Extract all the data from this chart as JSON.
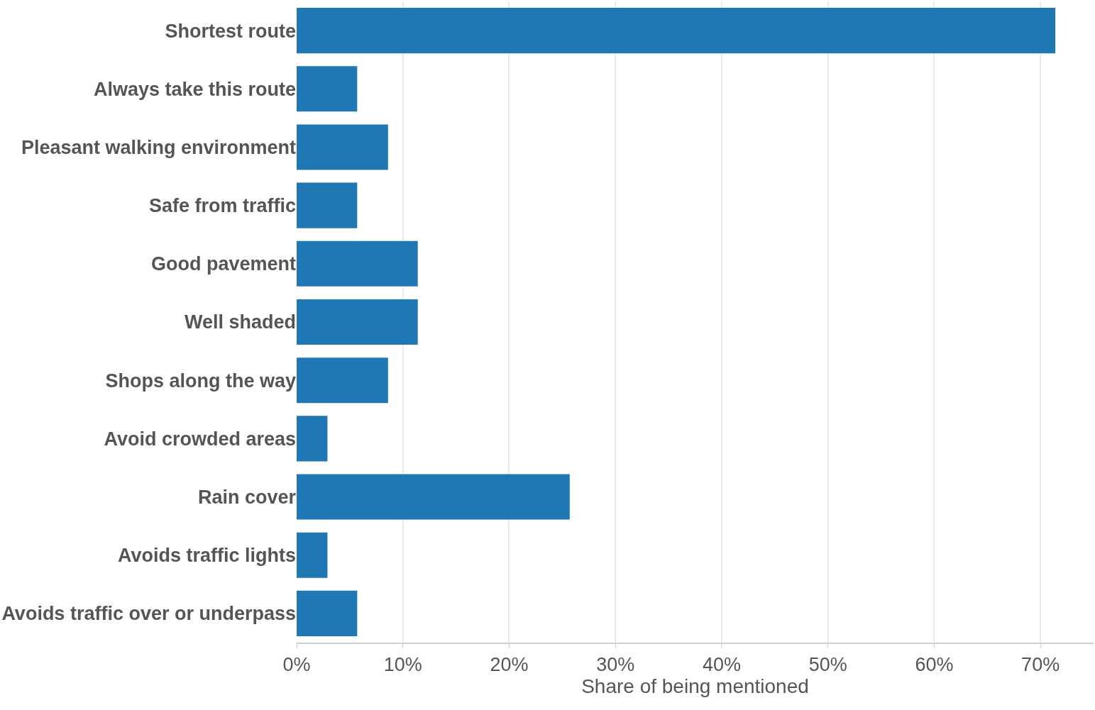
{
  "chart_data": {
    "type": "bar",
    "orientation": "horizontal",
    "xlabel": "Share of being mentioned",
    "categories": [
      "Shortest route",
      "Always take this route",
      "Pleasant walking environment",
      "Safe from traffic",
      "Good pavement",
      "Well shaded",
      "Shops along the way",
      "Avoid crowded areas",
      "Rain cover",
      "Avoids traffic lights",
      "Avoids traffic over or underpass"
    ],
    "values": [
      71.4,
      5.7,
      8.6,
      5.7,
      11.4,
      11.4,
      8.6,
      2.9,
      25.7,
      2.9,
      5.7
    ],
    "color": "#1f77b4",
    "xlim": [
      0,
      75
    ],
    "xticks": [
      {
        "value": 0,
        "label": "0%"
      },
      {
        "value": 10,
        "label": "10%"
      },
      {
        "value": 20,
        "label": "20%"
      },
      {
        "value": 30,
        "label": "30%"
      },
      {
        "value": 40,
        "label": "40%"
      },
      {
        "value": 50,
        "label": "50%"
      },
      {
        "value": 60,
        "label": "60%"
      },
      {
        "value": 70,
        "label": "70%"
      }
    ],
    "grid": "x"
  }
}
